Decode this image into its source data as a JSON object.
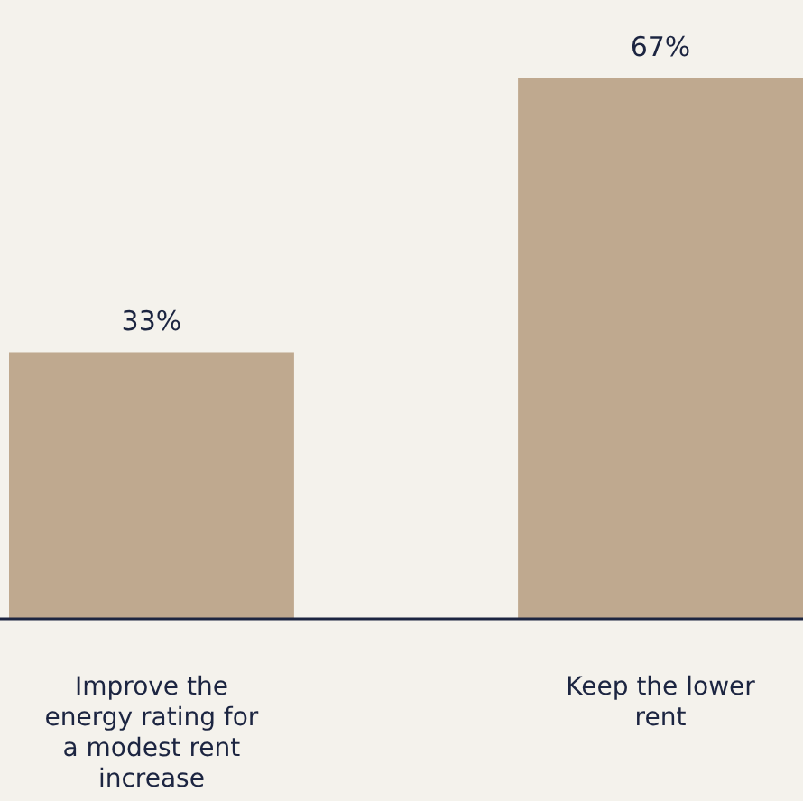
{
  "chart_data": {
    "type": "bar",
    "categories": [
      "Improve the energy rating for a modest rent increase",
      "Keep the lower rent"
    ],
    "values": [
      33,
      67
    ],
    "value_labels": [
      "33%",
      "67%"
    ],
    "color": "#bfa98f"
  }
}
